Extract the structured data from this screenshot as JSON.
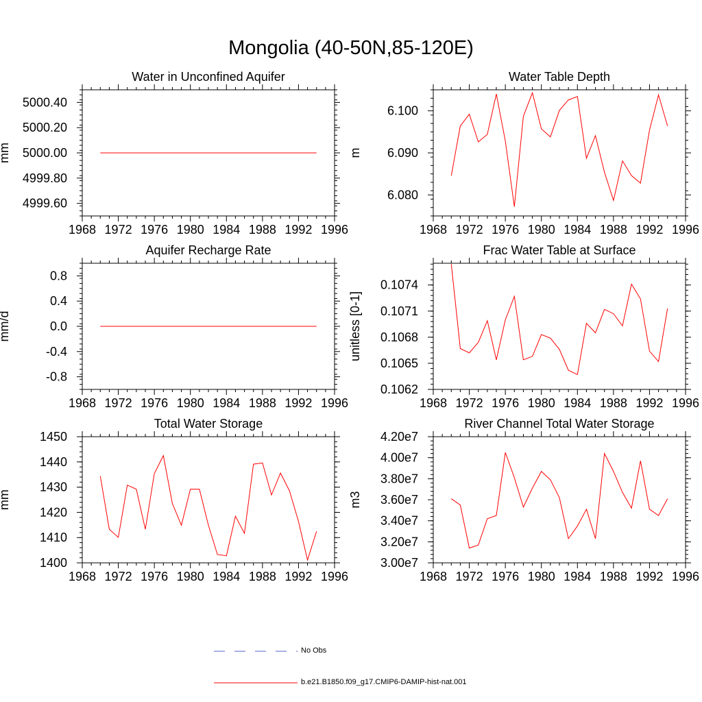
{
  "figure_title": "Mongolia (40-50N,85-120E)",
  "legend": {
    "entries": [
      {
        "label": "No Obs",
        "color": "#5060c8",
        "style": "dashed"
      },
      {
        "label": "b.e21.B1850.f09_g17.CMIP6-DAMIP-hist-nat.001",
        "color": "#ff0000",
        "style": "solid"
      }
    ]
  },
  "chart_data": [
    {
      "type": "line",
      "title": "Water in Unconfined Aquifer",
      "ylabel": "mm",
      "xlim": [
        1968,
        1996
      ],
      "ylim": [
        4999.5,
        5000.5
      ],
      "xticks": [
        1968,
        1972,
        1976,
        1980,
        1984,
        1988,
        1992,
        1996
      ],
      "yticks": [
        4999.6,
        4999.8,
        5000.0,
        5000.2,
        5000.4
      ],
      "ytick_labels": [
        "4999.60",
        "4999.80",
        "5000.00",
        "5000.20",
        "5000.40"
      ],
      "x": [
        1970,
        1971,
        1972,
        1973,
        1974,
        1975,
        1976,
        1977,
        1978,
        1979,
        1980,
        1981,
        1982,
        1983,
        1984,
        1985,
        1986,
        1987,
        1988,
        1989,
        1990,
        1991,
        1992,
        1993,
        1994
      ],
      "series": [
        {
          "values": [
            5000,
            5000,
            5000,
            5000,
            5000,
            5000,
            5000,
            5000,
            5000,
            5000,
            5000,
            5000,
            5000,
            5000,
            5000,
            5000,
            5000,
            5000,
            5000,
            5000,
            5000,
            5000,
            5000,
            5000,
            5000
          ],
          "color": "#ff0000"
        }
      ]
    },
    {
      "type": "line",
      "title": "Water Table Depth",
      "ylabel": "m",
      "xlim": [
        1968,
        1996
      ],
      "ylim": [
        6.075,
        6.105
      ],
      "xticks": [
        1968,
        1972,
        1976,
        1980,
        1984,
        1988,
        1992,
        1996
      ],
      "yticks": [
        6.08,
        6.09,
        6.1
      ],
      "ytick_labels": [
        "6.080",
        "6.090",
        "6.100"
      ],
      "x": [
        1970,
        1971,
        1972,
        1973,
        1974,
        1975,
        1976,
        1977,
        1978,
        1979,
        1980,
        1981,
        1982,
        1983,
        1984,
        1985,
        1986,
        1987,
        1988,
        1989,
        1990,
        1991,
        1992,
        1993,
        1994
      ],
      "series": [
        {
          "values": [
            6.0846,
            6.0964,
            6.0992,
            6.0926,
            6.0944,
            6.104,
            6.0928,
            6.0772,
            6.0987,
            6.1043,
            6.0957,
            6.0938,
            6.1001,
            6.1026,
            6.1034,
            6.0887,
            6.0941,
            6.0854,
            6.0787,
            6.0881,
            6.0846,
            6.0828,
            6.0954,
            6.1038,
            6.0964
          ],
          "color": "#ff0000"
        }
      ]
    },
    {
      "type": "line",
      "title": "Aquifer Recharge Rate",
      "ylabel": "mm/d",
      "xlim": [
        1968,
        1996
      ],
      "ylim": [
        -1.0,
        1.0
      ],
      "xticks": [
        1968,
        1972,
        1976,
        1980,
        1984,
        1988,
        1992,
        1996
      ],
      "yticks": [
        -0.8,
        -0.4,
        0.0,
        0.4,
        0.8
      ],
      "ytick_labels": [
        "-0.8",
        "-0.4",
        "0.0",
        "0.4",
        "0.8"
      ],
      "x": [
        1970,
        1971,
        1972,
        1973,
        1974,
        1975,
        1976,
        1977,
        1978,
        1979,
        1980,
        1981,
        1982,
        1983,
        1984,
        1985,
        1986,
        1987,
        1988,
        1989,
        1990,
        1991,
        1992,
        1993,
        1994
      ],
      "series": [
        {
          "values": [
            0,
            0,
            0,
            0,
            0,
            0,
            0,
            0,
            0,
            0,
            0,
            0,
            0,
            0,
            0,
            0,
            0,
            0,
            0,
            0,
            0,
            0,
            0,
            0,
            0
          ],
          "color": "#ff0000"
        }
      ]
    },
    {
      "type": "line",
      "title": "Frac Water Table at Surface",
      "ylabel": "unitless [0-1]",
      "xlim": [
        1968,
        1996
      ],
      "ylim": [
        0.1062,
        0.10765
      ],
      "xticks": [
        1968,
        1972,
        1976,
        1980,
        1984,
        1988,
        1992,
        1996
      ],
      "yticks": [
        0.1062,
        0.1065,
        0.1068,
        0.1071,
        0.1074
      ],
      "ytick_labels": [
        "0.1062",
        "0.1065",
        "0.1068",
        "0.1071",
        "0.1074"
      ],
      "x": [
        1970,
        1971,
        1972,
        1973,
        1974,
        1975,
        1976,
        1977,
        1978,
        1979,
        1980,
        1981,
        1982,
        1983,
        1984,
        1985,
        1986,
        1987,
        1988,
        1989,
        1990,
        1991,
        1992,
        1993,
        1994
      ],
      "series": [
        {
          "values": [
            0.10764,
            0.10667,
            0.10662,
            0.10674,
            0.10699,
            0.10654,
            0.107,
            0.10727,
            0.10654,
            0.10658,
            0.10683,
            0.10679,
            0.10666,
            0.10642,
            0.10637,
            0.10696,
            0.10685,
            0.10712,
            0.10707,
            0.10693,
            0.10741,
            0.10724,
            0.10664,
            0.10652,
            0.10713
          ],
          "color": "#ff0000"
        }
      ]
    },
    {
      "type": "line",
      "title": "Total Water Storage",
      "ylabel": "mm",
      "xlim": [
        1968,
        1996
      ],
      "ylim": [
        1400,
        1450
      ],
      "xticks": [
        1968,
        1972,
        1976,
        1980,
        1984,
        1988,
        1992,
        1996
      ],
      "yticks": [
        1400,
        1410,
        1420,
        1430,
        1440,
        1450
      ],
      "ytick_labels": [
        "1400",
        "1410",
        "1420",
        "1430",
        "1440",
        "1450"
      ],
      "x": [
        1970,
        1971,
        1972,
        1973,
        1974,
        1975,
        1976,
        1977,
        1978,
        1979,
        1980,
        1981,
        1982,
        1983,
        1984,
        1985,
        1986,
        1987,
        1988,
        1989,
        1990,
        1991,
        1992,
        1993,
        1994
      ],
      "series": [
        {
          "values": [
            1434.4,
            1413.3,
            1410.1,
            1430.8,
            1429.2,
            1413.3,
            1435.4,
            1442.5,
            1423.5,
            1414.9,
            1429.2,
            1429.2,
            1414.9,
            1403.3,
            1402.8,
            1418.5,
            1411.7,
            1439.1,
            1439.6,
            1426.9,
            1435.6,
            1428.5,
            1416.4,
            1401.1,
            1412.5
          ],
          "color": "#ff0000"
        }
      ]
    },
    {
      "type": "line",
      "title": "River Channel Total Water Storage",
      "ylabel": "m3",
      "xlim": [
        1968,
        1996
      ],
      "ylim": [
        30000000,
        42000000
      ],
      "xticks": [
        1968,
        1972,
        1976,
        1980,
        1984,
        1988,
        1992,
        1996
      ],
      "yticks": [
        30000000,
        32000000,
        34000000,
        36000000,
        38000000,
        40000000,
        42000000
      ],
      "ytick_labels": [
        "3.00e7",
        "3.20e7",
        "3.40e7",
        "3.60e7",
        "3.80e7",
        "4.00e7",
        "4.20e7"
      ],
      "x": [
        1970,
        1971,
        1972,
        1973,
        1974,
        1975,
        1976,
        1977,
        1978,
        1979,
        1980,
        1981,
        1982,
        1983,
        1984,
        1985,
        1986,
        1987,
        1988,
        1989,
        1990,
        1991,
        1992,
        1993,
        1994
      ],
      "series": [
        {
          "values": [
            36100000,
            35500000,
            31400000,
            31700000,
            34200000,
            34500000,
            40500000,
            38100000,
            35300000,
            37100000,
            38700000,
            37900000,
            36200000,
            32300000,
            33500000,
            35100000,
            32300000,
            40400000,
            38700000,
            36700000,
            35200000,
            39700000,
            35100000,
            34500000,
            36100000
          ],
          "color": "#ff0000"
        }
      ]
    }
  ]
}
